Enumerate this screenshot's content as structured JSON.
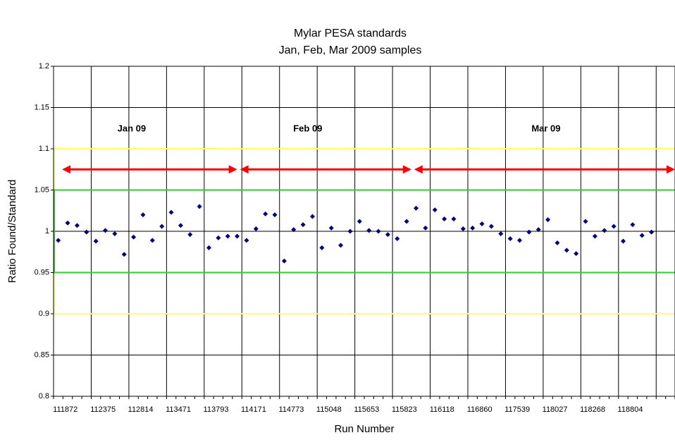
{
  "chart_data": {
    "type": "scatter",
    "title": "Mylar PESA standards",
    "subtitle": "Jan, Feb, Mar 2009 samples",
    "x_label": "Run Number",
    "y_label": "Ratio Found/Standard",
    "categories": [
      "111872",
      null,
      null,
      null,
      "112375",
      null,
      null,
      null,
      "112814",
      null,
      null,
      null,
      "113471",
      null,
      null,
      null,
      "113793",
      null,
      null,
      null,
      "114171",
      null,
      null,
      null,
      "114773",
      null,
      null,
      null,
      "115048",
      null,
      null,
      null,
      "115653",
      null,
      null,
      null,
      "115823",
      null,
      null,
      null,
      "116118",
      null,
      null,
      null,
      "116860",
      null,
      null,
      null,
      "117539",
      null,
      null,
      null,
      "118027",
      null,
      null,
      null,
      "118268",
      null,
      null,
      null,
      "118804",
      null,
      null,
      null,
      null,
      null
    ],
    "series": [
      {
        "color": "#000080",
        "values": [
          0.989,
          1.01,
          1.007,
          0.999,
          0.988,
          1.001,
          0.997,
          0.972,
          0.993,
          1.02,
          0.989,
          1.006,
          1.023,
          1.007,
          0.996,
          1.03,
          0.98,
          0.992,
          0.994,
          0.994,
          0.989,
          1.003,
          1.021,
          1.02,
          0.964,
          1.002,
          1.008,
          1.018,
          0.98,
          1.004,
          0.983,
          1.0,
          1.012,
          1.001,
          1.0,
          0.996,
          0.991,
          1.012,
          1.028,
          1.004,
          1.026,
          1.015,
          1.015,
          1.003,
          1.004,
          1.009,
          1.006,
          0.997,
          0.991,
          0.989,
          0.999,
          1.002,
          1.014,
          0.986,
          0.977,
          0.973,
          1.012,
          0.994,
          1.001,
          1.006,
          0.988,
          1.008,
          0.995,
          0.999,
          null,
          null
        ]
      }
    ],
    "ylim": [
      0.8,
      1.2
    ],
    "yticks": [
      0.8,
      0.85,
      0.9,
      0.95,
      1,
      1.05,
      1.1,
      1.15,
      1.2
    ],
    "grid": true,
    "x_grid_every": 4,
    "reference_bands": [
      {
        "low": 0.9,
        "high": 1.1,
        "color": "#ffff66"
      },
      {
        "low": 0.95,
        "high": 1.05,
        "color": "#33cc33"
      }
    ],
    "annotations": [
      {
        "text": "Jan 09",
        "x": 8.3,
        "y": 1.124
      },
      {
        "text": "Feb 09",
        "x": 27,
        "y": 1.124
      },
      {
        "text": "Mar 09",
        "x": 52.3,
        "y": 1.124
      }
    ],
    "arrows": [
      {
        "x": [
          0.9,
          19.5
        ],
        "y": 1.075,
        "color": "#ff0000"
      },
      {
        "x": [
          19.8,
          38.0
        ],
        "y": 1.075,
        "color": "#ff0000"
      },
      {
        "x": [
          38.3,
          66
        ],
        "y": 1.075,
        "color": "#ff0000"
      }
    ]
  }
}
